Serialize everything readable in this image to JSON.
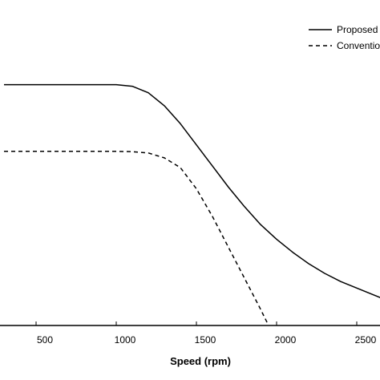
{
  "chart_data": {
    "type": "line",
    "title": "",
    "xlabel": "Speed (rpm)",
    "ylabel": "",
    "xlim": [
      300,
      2700
    ],
    "ylim": [
      0,
      1.0
    ],
    "x_ticks": [
      500,
      1000,
      1500,
      2000,
      2500
    ],
    "x_tick_labels": [
      "500",
      "1000",
      "1500",
      "2000",
      "2500"
    ],
    "grid": false,
    "legend_position": "top-right",
    "series": [
      {
        "name": "Proposed",
        "style": "solid",
        "color": "#000000",
        "x": [
          300,
          1000,
          1100,
          1200,
          1300,
          1400,
          1500,
          1600,
          1700,
          1800,
          1900,
          2000,
          2100,
          2200,
          2300,
          2400,
          2500,
          2600,
          2700
        ],
        "y": [
          0.74,
          0.74,
          0.735,
          0.715,
          0.675,
          0.62,
          0.555,
          0.49,
          0.425,
          0.365,
          0.31,
          0.265,
          0.225,
          0.19,
          0.16,
          0.135,
          0.115,
          0.095,
          0.075
        ]
      },
      {
        "name": "Conventional",
        "style": "dashed",
        "color": "#000000",
        "x": [
          300,
          1000,
          1100,
          1200,
          1300,
          1400,
          1500,
          1600,
          1700,
          1800,
          1900,
          1950
        ],
        "y": [
          0.535,
          0.535,
          0.534,
          0.53,
          0.515,
          0.485,
          0.42,
          0.335,
          0.24,
          0.145,
          0.05,
          0.0
        ]
      }
    ]
  }
}
